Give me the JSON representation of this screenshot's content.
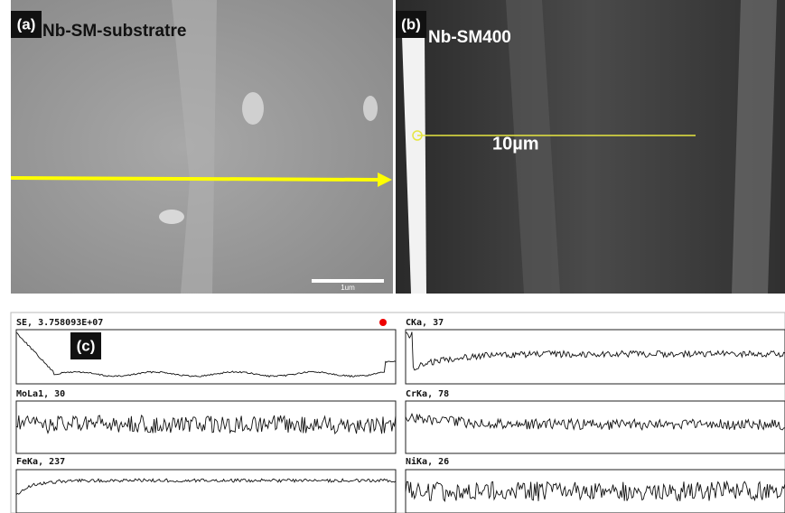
{
  "panels": [
    {
      "label": "(a)",
      "caption": "Nb-SM-substratre",
      "scale_bar": "1um"
    },
    {
      "label": "(b)",
      "caption": "Nb-SM400",
      "scale_bar": "10µm"
    }
  ],
  "line_scan": {
    "label": "(c)",
    "plots": [
      {
        "title": "SE, 3.758093E+07"
      },
      {
        "title": "CKa, 37"
      },
      {
        "title": "MoLa1, 30"
      },
      {
        "title": "CrKa, 78"
      },
      {
        "title": "FeKa, 237"
      },
      {
        "title": "NiKa, 26"
      }
    ]
  }
}
